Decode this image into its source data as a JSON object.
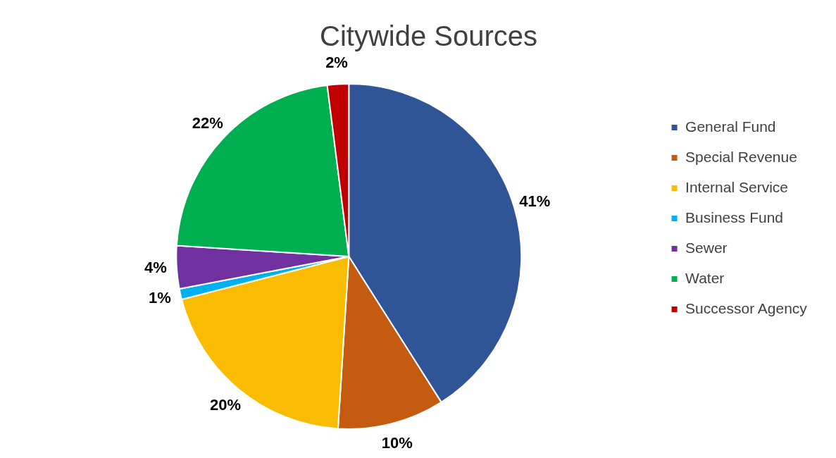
{
  "chart_data": {
    "type": "pie",
    "title": "Citywide Sources",
    "categories": [
      "General Fund",
      "Special Revenue",
      "Internal Service",
      "Business Fund",
      "Sewer",
      "Water",
      "Successor Agency"
    ],
    "values": [
      41,
      10,
      20,
      1,
      4,
      22,
      2
    ],
    "colors": [
      "#2f5597",
      "#c55a11",
      "#fabc00",
      "#00b0f0",
      "#7030a0",
      "#00b050",
      "#c00000"
    ],
    "value_labels": [
      "41%",
      "10%",
      "20%",
      "1%",
      "4%",
      "22%",
      "2%"
    ],
    "legend": "right"
  }
}
